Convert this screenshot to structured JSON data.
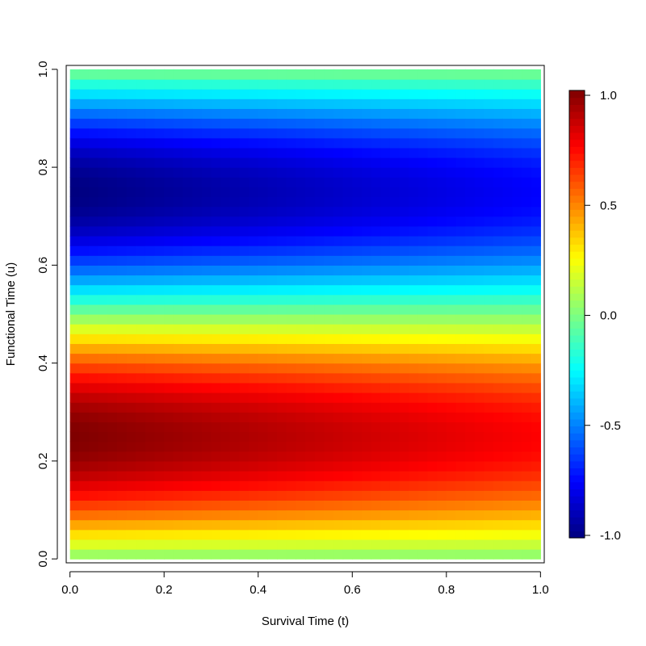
{
  "chart_data": {
    "type": "heatmap",
    "title": "",
    "xlabel": "Survival Time (t)",
    "ylabel": "Functional Time (u)",
    "xlim": [
      0,
      1
    ],
    "ylim": [
      0,
      1
    ],
    "x_ticks": [
      0.0,
      0.2,
      0.4,
      0.6,
      0.8,
      1.0
    ],
    "x_tick_labels": [
      "0.0",
      "0.2",
      "0.4",
      "0.6",
      "0.8",
      "1.0"
    ],
    "y_ticks": [
      0.0,
      0.2,
      0.4,
      0.6,
      0.8,
      1.0
    ],
    "y_tick_labels": [
      "0.0",
      "0.2",
      "0.4",
      "0.6",
      "0.8",
      "1.0"
    ],
    "grid": false,
    "value_function": "z(t,u) = sin(2*pi*u) * (1 - 0.25*t)",
    "color_scale": {
      "type": "jet",
      "zlim": [
        -1.0,
        1.0
      ],
      "tick_values": [
        1.0,
        0.5,
        0.0,
        -0.5,
        -1.0
      ],
      "tick_labels": [
        "1.0",
        "0.5",
        "0.0",
        "-0.5",
        "-1.0"
      ],
      "stops": [
        "#00007F",
        "#0000FF",
        "#007FFF",
        "#00FFFF",
        "#7FFF7F",
        "#FFFF00",
        "#FF7F00",
        "#FF0000",
        "#7F0000"
      ]
    },
    "legend_placement": "right",
    "grid_resolution": {
      "nx": 50,
      "ny": 50
    }
  }
}
